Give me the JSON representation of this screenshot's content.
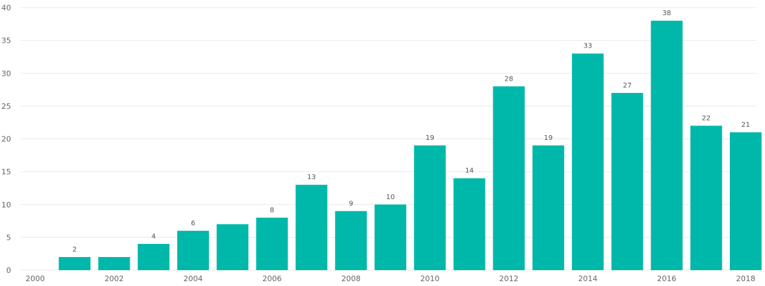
{
  "chart_data": {
    "type": "bar",
    "title": "",
    "xlabel": "",
    "ylabel": "",
    "grid": true,
    "legend": "none",
    "color": "#00B8AA",
    "x": [
      2001,
      2002,
      2003,
      2004,
      2005,
      2006,
      2007,
      2008,
      2009,
      2010,
      2011,
      2012,
      2013,
      2014,
      2015,
      2016,
      2017,
      2018
    ],
    "values": [
      2,
      2,
      4,
      6,
      7,
      8,
      13,
      9,
      10,
      19,
      14,
      28,
      19,
      33,
      27,
      38,
      22,
      21
    ],
    "data_labels": [
      "2",
      "",
      "4",
      "6",
      "",
      "8",
      "13",
      "9",
      "10",
      "19",
      "14",
      "28",
      "19",
      "33",
      "27",
      "38",
      "22",
      "21"
    ],
    "xlim": [
      2000,
      2018
    ],
    "ylim": [
      0,
      40
    ],
    "x_ticks": [
      "2000",
      "2002",
      "2004",
      "2006",
      "2008",
      "2010",
      "2012",
      "2014",
      "2016",
      "2018"
    ],
    "y_ticks": [
      "0",
      "5",
      "10",
      "15",
      "20",
      "25",
      "30",
      "35",
      "40"
    ]
  }
}
